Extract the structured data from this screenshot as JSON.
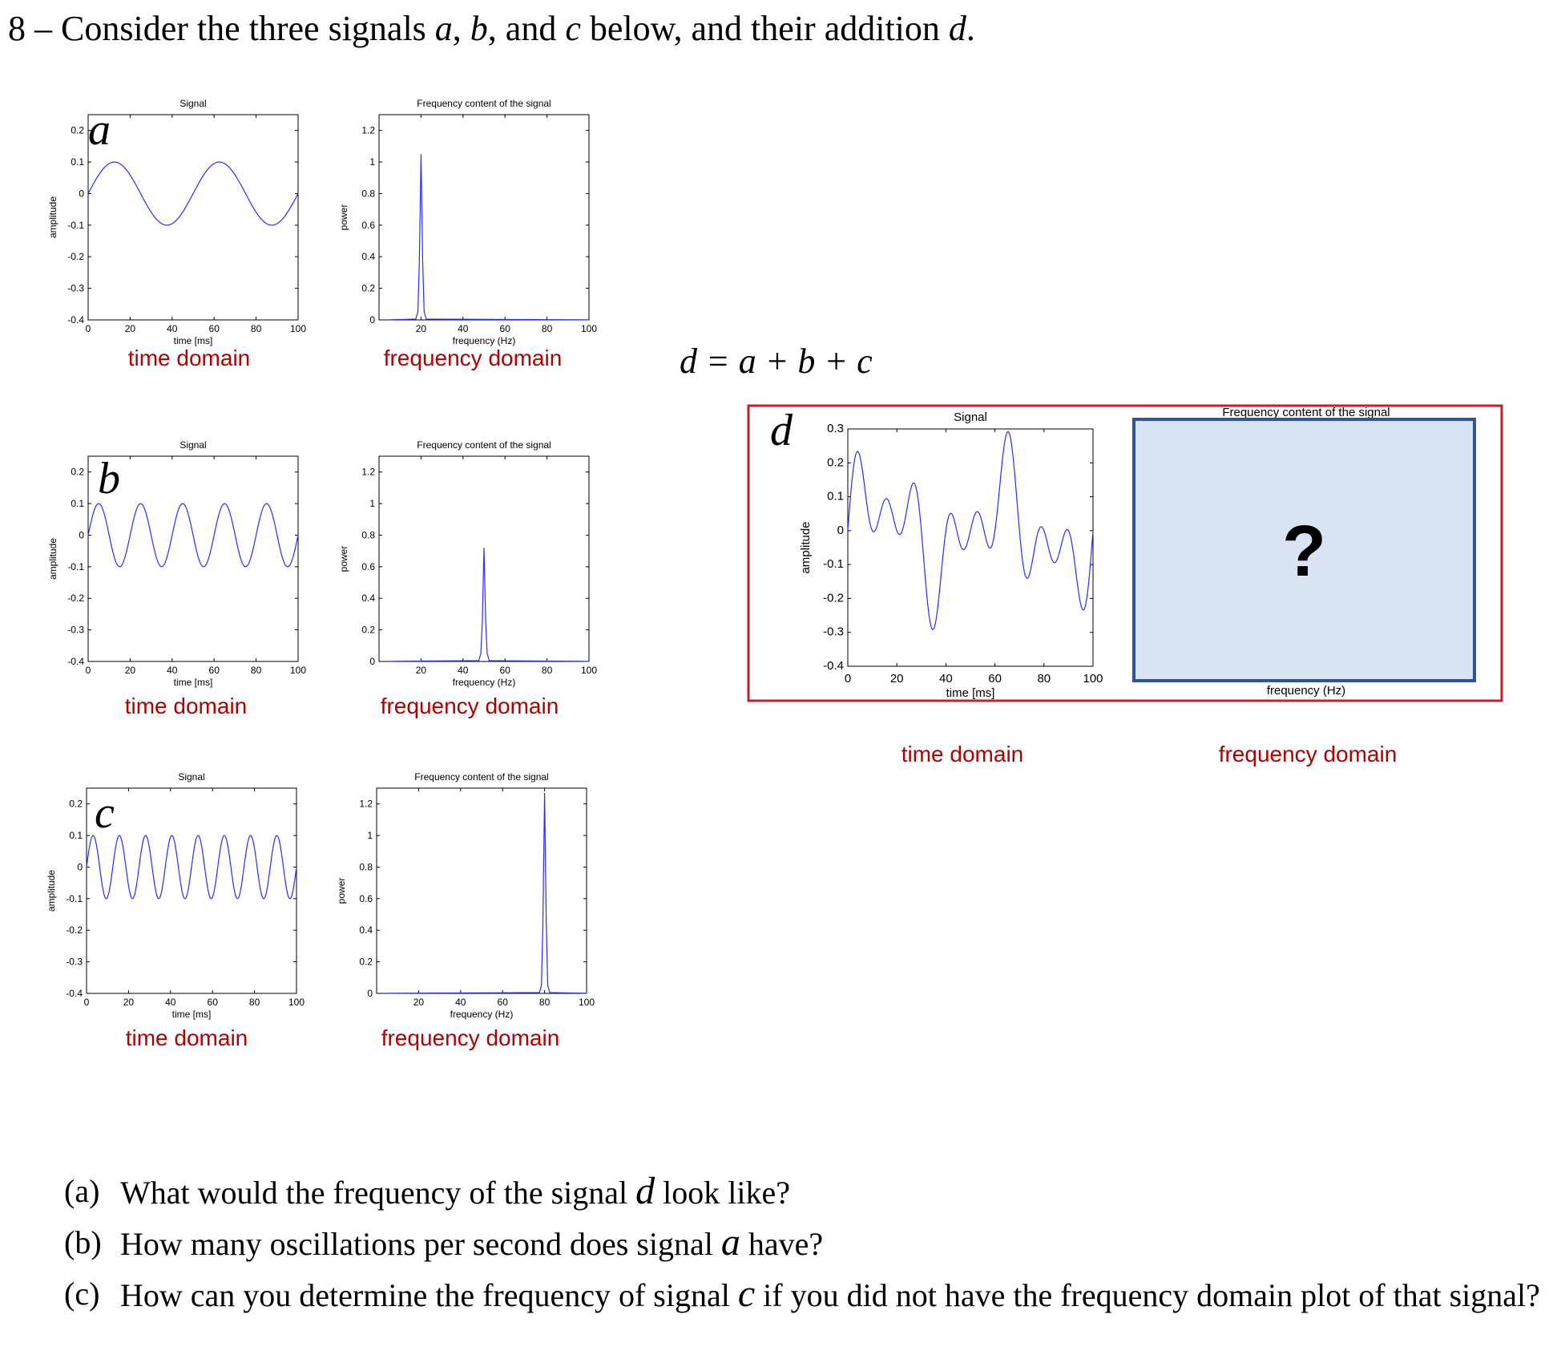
{
  "header": {
    "number": "8",
    "dash": "–",
    "text_1": "Consider the three signals",
    "sym_a": "a",
    "comma_1": ",",
    "sym_b": "b",
    "comma_2": ", and",
    "sym_c": "c",
    "text_2": "below, and their addition",
    "sym_d": "d",
    "period": "."
  },
  "equation": "d = a + b + c",
  "questions": [
    {
      "letter": "(a)",
      "before": "What would the frequency of the signal",
      "sym": "d",
      "after": "look like?"
    },
    {
      "letter": "(b)",
      "before": "How many oscillations per second does signal",
      "sym": "a",
      "after": "have?"
    },
    {
      "letter": "(c)",
      "before": "How can you determine the frequency of signal",
      "sym": "c",
      "after": "if you did not have the frequency domain plot of that signal?"
    }
  ],
  "colors": {
    "line": "#2b2bff",
    "caption": "#b00000",
    "highlight_border": "#c0202a",
    "placeholder_fill": "#dae3f3",
    "placeholder_border": "#2f5597"
  },
  "placeholder": {
    "mark": "?",
    "title": "Frequency content of the signal",
    "xlabel": "frequency (Hz)"
  },
  "chart_data": [
    {
      "id": "a-time",
      "type": "line",
      "letter": "a",
      "title": "Signal",
      "xlabel": "time [ms]",
      "ylabel": "amplitude",
      "xlim": [
        0,
        100
      ],
      "ylim": [
        -0.4,
        0.25
      ],
      "xticks": [
        "0",
        "20",
        "40",
        "60",
        "80",
        "100"
      ],
      "yticks": [
        "0.2",
        "0.1",
        "0",
        "-0.1",
        "-0.2",
        "-0.3",
        "-0.4"
      ],
      "series": [
        {
          "function": "sine",
          "amplitude": 0.1,
          "frequency_hz": 20
        }
      ],
      "caption": "time domain"
    },
    {
      "id": "a-freq",
      "type": "line",
      "title": "Frequency content of the signal",
      "xlabel": "frequency (Hz)",
      "ylabel": "power",
      "xlim": [
        0,
        100
      ],
      "ylim": [
        0,
        1.3
      ],
      "xticks": [
        "20",
        "40",
        "60",
        "80",
        "100"
      ],
      "yticks": [
        "1.2",
        "1",
        "0.8",
        "0.6",
        "0.4",
        "0.2",
        "0"
      ],
      "series": [
        {
          "peak_hz": 20,
          "peak_power": 1.05
        }
      ],
      "caption": "frequency domain"
    },
    {
      "id": "b-time",
      "type": "line",
      "letter": "b",
      "title": "Signal",
      "xlabel": "time [ms]",
      "ylabel": "amplitude",
      "xlim": [
        0,
        100
      ],
      "ylim": [
        -0.4,
        0.25
      ],
      "xticks": [
        "0",
        "20",
        "40",
        "60",
        "80",
        "100"
      ],
      "yticks": [
        "0.2",
        "0.1",
        "0",
        "-0.1",
        "-0.2",
        "-0.3",
        "-0.4"
      ],
      "series": [
        {
          "function": "sine",
          "amplitude": 0.1,
          "frequency_hz": 50
        }
      ],
      "caption": "time domain"
    },
    {
      "id": "b-freq",
      "type": "line",
      "title": "Frequency content of the signal",
      "xlabel": "frequency (Hz)",
      "ylabel": "power",
      "xlim": [
        0,
        100
      ],
      "ylim": [
        0,
        1.3
      ],
      "xticks": [
        "20",
        "40",
        "60",
        "80",
        "100"
      ],
      "yticks": [
        "1.2",
        "1",
        "0.8",
        "0.6",
        "0.4",
        "0.2",
        "0"
      ],
      "series": [
        {
          "peak_hz": 50,
          "peak_power": 0.72
        }
      ],
      "caption": "frequency domain"
    },
    {
      "id": "c-time",
      "type": "line",
      "letter": "c",
      "title": "Signal",
      "xlabel": "time [ms]",
      "ylabel": "amplitude",
      "xlim": [
        0,
        100
      ],
      "ylim": [
        -0.4,
        0.25
      ],
      "xticks": [
        "0",
        "20",
        "40",
        "60",
        "80",
        "100"
      ],
      "yticks": [
        "0.2",
        "0.1",
        "0",
        "-0.1",
        "-0.2",
        "-0.3",
        "-0.4"
      ],
      "series": [
        {
          "function": "sine",
          "amplitude": 0.1,
          "frequency_hz": 80
        }
      ],
      "caption": "time domain"
    },
    {
      "id": "c-freq",
      "type": "line",
      "title": "Frequency content of the signal",
      "xlabel": "frequency (Hz)",
      "ylabel": "power",
      "xlim": [
        0,
        100
      ],
      "ylim": [
        0,
        1.3
      ],
      "xticks": [
        "20",
        "40",
        "60",
        "80",
        "100"
      ],
      "yticks": [
        "1.2",
        "1",
        "0.8",
        "0.6",
        "0.4",
        "0.2",
        "0"
      ],
      "series": [
        {
          "peak_hz": 80,
          "peak_power": 1.27
        }
      ],
      "caption": "frequency domain"
    },
    {
      "id": "d-time",
      "type": "line",
      "letter": "d",
      "title": "Signal",
      "xlabel": "time [ms]",
      "ylabel": "amplitude",
      "xlim": [
        0,
        100
      ],
      "ylim": [
        -0.4,
        0.3
      ],
      "xticks": [
        "0",
        "20",
        "40",
        "60",
        "80",
        "100"
      ],
      "yticks": [
        "0.3",
        "0.2",
        "0.1",
        "0",
        "-0.1",
        "-0.2",
        "-0.3",
        "-0.4"
      ],
      "series": [
        {
          "function": "sum_of_sines",
          "components": [
            {
              "amplitude": 0.1,
              "frequency_hz": 20
            },
            {
              "amplitude": 0.1,
              "frequency_hz": 50
            },
            {
              "amplitude": 0.1,
              "frequency_hz": 80
            }
          ]
        }
      ],
      "caption": "time domain"
    }
  ]
}
